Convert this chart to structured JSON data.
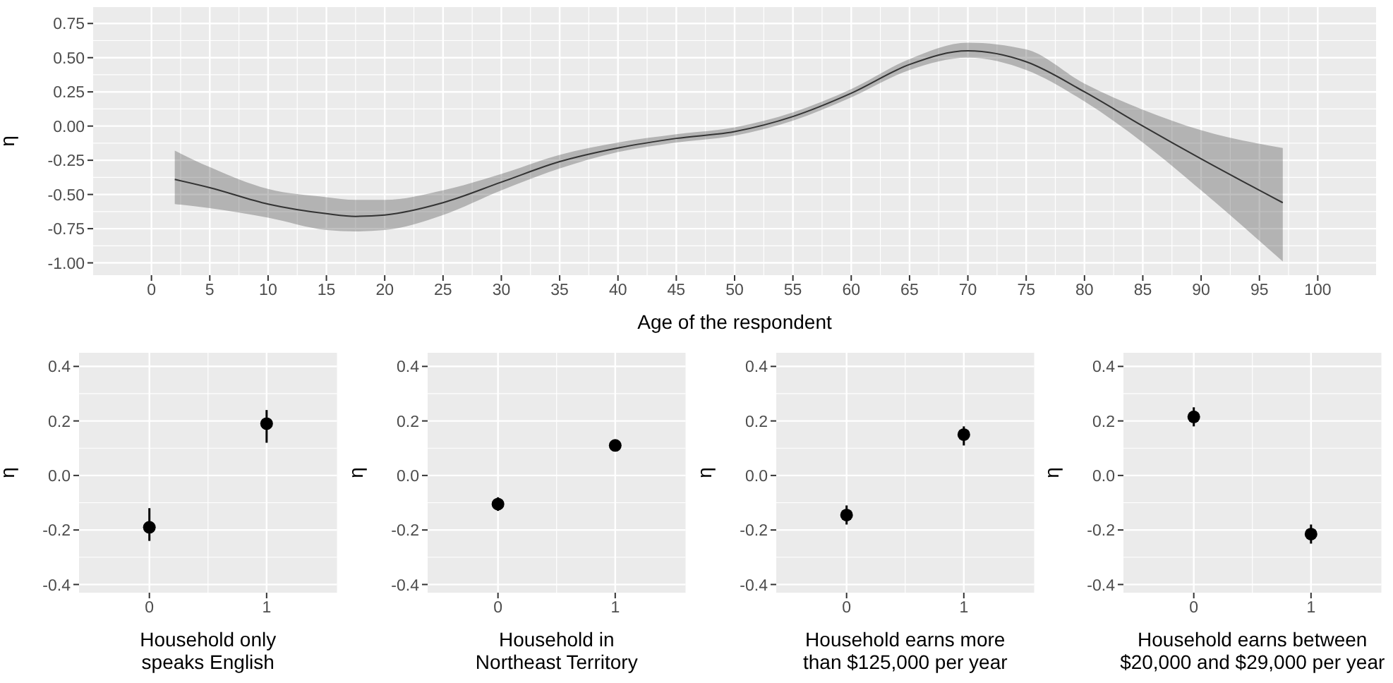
{
  "chart_data": [
    {
      "type": "line",
      "xlabel": "Age of the respondent",
      "ylabel": "η",
      "grid": true,
      "xlim": [
        -5,
        105
      ],
      "xticks": [
        0,
        5,
        10,
        15,
        20,
        25,
        30,
        35,
        40,
        45,
        50,
        55,
        60,
        65,
        70,
        75,
        80,
        85,
        90,
        95,
        100
      ],
      "ylim": [
        -1.09,
        0.87
      ],
      "yticks": [
        {
          "value": -1,
          "label": "-1.00"
        },
        -0.75,
        {
          "value": -0.5,
          "label": "-0.50"
        },
        -0.25,
        {
          "value": 0,
          "label": "0.00"
        },
        0.25,
        {
          "value": 0.5,
          "label": "0.50"
        },
        0.75
      ],
      "x": [
        2,
        5,
        10,
        15,
        17.5,
        20,
        25,
        30,
        35,
        40,
        45,
        50,
        55,
        60,
        65,
        70,
        75,
        80,
        85,
        90,
        97
      ],
      "series": [
        {
          "color": "#333333",
          "values": [
            -0.39,
            -0.45,
            -0.57,
            -0.64,
            -0.66,
            -0.65,
            -0.56,
            -0.41,
            -0.26,
            -0.16,
            -0.09,
            -0.04,
            0.07,
            0.24,
            0.45,
            0.55,
            0.47,
            0.25,
            0.0,
            -0.24,
            -0.56
          ],
          "lower": [
            -0.57,
            -0.6,
            -0.67,
            -0.76,
            -0.77,
            -0.76,
            -0.65,
            -0.47,
            -0.31,
            -0.19,
            -0.12,
            -0.07,
            0.04,
            0.21,
            0.41,
            0.5,
            0.41,
            0.18,
            -0.12,
            -0.47,
            -0.99
          ],
          "upper": [
            -0.18,
            -0.3,
            -0.46,
            -0.52,
            -0.54,
            -0.54,
            -0.47,
            -0.35,
            -0.21,
            -0.12,
            -0.06,
            -0.01,
            0.1,
            0.27,
            0.49,
            0.61,
            0.56,
            0.31,
            0.12,
            -0.03,
            -0.16
          ]
        }
      ]
    },
    {
      "type": "scatter",
      "xlabel": "Household only speaks English",
      "ylabel": "η",
      "grid": true,
      "marker": "circle",
      "color": "#000000",
      "categories": [
        "0",
        "1"
      ],
      "values": [
        -0.19,
        0.19
      ],
      "errors": [
        [
          -0.24,
          -0.12
        ],
        [
          0.12,
          0.24
        ]
      ],
      "ylim": [
        -0.43,
        0.45
      ],
      "yticks": [
        -0.4,
        -0.2,
        {
          "value": 0,
          "label": "0.0"
        },
        0.2,
        0.4
      ]
    },
    {
      "type": "scatter",
      "xlabel": "Household in Northeast Territory",
      "ylabel": "η",
      "grid": true,
      "marker": "circle",
      "color": "#000000",
      "categories": [
        "0",
        "1"
      ],
      "values": [
        -0.105,
        0.11
      ],
      "errors": [
        [
          -0.13,
          -0.08
        ],
        [
          0.09,
          0.13
        ]
      ],
      "ylim": [
        -0.43,
        0.45
      ],
      "yticks": [
        -0.4,
        -0.2,
        {
          "value": 0,
          "label": "0.0"
        },
        0.2,
        0.4
      ]
    },
    {
      "type": "scatter",
      "xlabel": "Household earns more than $125,000 per year",
      "ylabel": "η",
      "grid": true,
      "marker": "circle",
      "color": "#000000",
      "categories": [
        "0",
        "1"
      ],
      "values": [
        -0.145,
        0.15
      ],
      "errors": [
        [
          -0.18,
          -0.11
        ],
        [
          0.11,
          0.18
        ]
      ],
      "ylim": [
        -0.43,
        0.45
      ],
      "yticks": [
        -0.4,
        -0.2,
        {
          "value": 0,
          "label": "0.0"
        },
        0.2,
        0.4
      ]
    },
    {
      "type": "scatter",
      "xlabel": "Household earns between $20,000 and $29,000 per year",
      "ylabel": "η",
      "grid": true,
      "marker": "circle",
      "color": "#000000",
      "categories": [
        "0",
        "1"
      ],
      "values": [
        0.215,
        -0.215
      ],
      "errors": [
        [
          0.18,
          0.25
        ],
        [
          -0.25,
          -0.18
        ]
      ],
      "ylim": [
        -0.43,
        0.45
      ],
      "yticks": [
        -0.4,
        -0.2,
        {
          "value": 0,
          "label": "0.0"
        },
        0.2,
        0.4
      ]
    }
  ]
}
